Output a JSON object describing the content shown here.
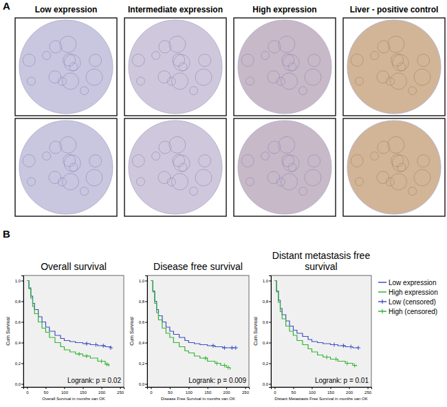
{
  "panel_a": {
    "label": "A",
    "columns": [
      "Low expression",
      "Intermediate expression",
      "High expression",
      "Liver - positive control"
    ]
  },
  "panel_b": {
    "label": "B"
  },
  "chart_data": [
    {
      "type": "line",
      "title": "Overall survival",
      "x_label": "Overall Survival in months van OK",
      "y_label": "Cum Survival",
      "annotation": "Logrank: p = 0.02",
      "xlim": [
        -10,
        260
      ],
      "xticks": [
        0,
        50,
        100,
        150,
        200,
        250
      ],
      "ylim": [
        -0.03,
        1.05
      ],
      "yticks": [
        {
          "value": 0,
          "label": "0,0"
        },
        {
          "value": 0.2,
          "label": "0,2"
        },
        {
          "value": 0.4,
          "label": "0,4"
        },
        {
          "value": 0.6,
          "label": "0,6"
        },
        {
          "value": 0.8,
          "label": "0,8"
        },
        {
          "value": 1,
          "label": "1,0"
        }
      ],
      "series": [
        {
          "color": "#3d4fc4",
          "line_style": "step",
          "x": [
            0,
            5,
            10,
            15,
            20,
            30,
            40,
            50,
            60,
            75,
            90,
            100,
            115,
            130,
            150,
            170,
            190,
            210,
            225
          ],
          "values": [
            1,
            0.93,
            0.85,
            0.78,
            0.72,
            0.65,
            0.6,
            0.55,
            0.51,
            0.47,
            0.44,
            0.42,
            0.41,
            0.4,
            0.39,
            0.38,
            0.37,
            0.36,
            0.35
          ]
        },
        {
          "color": "#2fb52f",
          "line_style": "step",
          "x": [
            0,
            5,
            10,
            15,
            20,
            30,
            40,
            50,
            60,
            75,
            90,
            100,
            115,
            130,
            150,
            170,
            190,
            210,
            220
          ],
          "values": [
            1,
            0.92,
            0.83,
            0.75,
            0.68,
            0.6,
            0.54,
            0.5,
            0.45,
            0.4,
            0.36,
            0.33,
            0.31,
            0.29,
            0.27,
            0.25,
            0.22,
            0.19,
            0.17
          ]
        },
        {
          "type": "scatter",
          "marker": "plus",
          "color": "#3d4fc4",
          "x": [
            160,
            185,
            205,
            225
          ],
          "values": [
            0.39,
            0.38,
            0.37,
            0.35
          ]
        },
        {
          "type": "scatter",
          "marker": "plus",
          "color": "#2fb52f",
          "x": [
            140,
            160,
            200,
            215
          ],
          "values": [
            0.29,
            0.27,
            0.22,
            0.19
          ]
        }
      ]
    },
    {
      "type": "line",
      "title": "Disease free survival",
      "x_label": "Disease Free Survival in months van OK",
      "y_label": "Cum Survival",
      "annotation": "Logrank: p = 0.009",
      "xlim": [
        -10,
        260
      ],
      "xticks": [
        0,
        50,
        100,
        150,
        200,
        250
      ],
      "ylim": [
        -0.03,
        1.05
      ],
      "yticks": [
        {
          "value": 0,
          "label": "0,0"
        },
        {
          "value": 0.2,
          "label": "0,2"
        },
        {
          "value": 0.4,
          "label": "0,4"
        },
        {
          "value": 0.6,
          "label": "0,6"
        },
        {
          "value": 0.8,
          "label": "0,8"
        },
        {
          "value": 1,
          "label": "1,0"
        }
      ],
      "series": [
        {
          "color": "#3d4fc4",
          "line_style": "step",
          "x": [
            0,
            5,
            10,
            15,
            20,
            30,
            40,
            50,
            60,
            75,
            90,
            100,
            115,
            130,
            150,
            170,
            190,
            210,
            225
          ],
          "values": [
            1,
            0.9,
            0.8,
            0.72,
            0.66,
            0.6,
            0.55,
            0.51,
            0.48,
            0.45,
            0.42,
            0.4,
            0.39,
            0.38,
            0.37,
            0.36,
            0.35,
            0.35,
            0.35
          ]
        },
        {
          "color": "#2fb52f",
          "line_style": "step",
          "x": [
            0,
            5,
            10,
            15,
            20,
            30,
            40,
            50,
            60,
            75,
            90,
            100,
            115,
            130,
            150,
            170,
            185,
            200,
            210
          ],
          "values": [
            1,
            0.89,
            0.78,
            0.69,
            0.62,
            0.54,
            0.49,
            0.45,
            0.4,
            0.36,
            0.32,
            0.3,
            0.27,
            0.25,
            0.22,
            0.2,
            0.18,
            0.16,
            0.14
          ]
        },
        {
          "type": "scatter",
          "marker": "plus",
          "color": "#3d4fc4",
          "x": [
            165,
            195,
            215,
            225
          ],
          "values": [
            0.37,
            0.35,
            0.35,
            0.35
          ]
        },
        {
          "type": "scatter",
          "marker": "plus",
          "color": "#2fb52f",
          "x": [
            145,
            175,
            195,
            205
          ],
          "values": [
            0.25,
            0.2,
            0.18,
            0.16
          ]
        }
      ]
    },
    {
      "type": "line",
      "title": "Distant metastasis free survival",
      "x_label": "Distant Metastasis Free Survival in months van OK",
      "y_label": "Cum Survival",
      "annotation": "Logrank: p = 0.01",
      "legend": "right",
      "xlim": [
        -10,
        260
      ],
      "xticks": [
        0,
        50,
        100,
        150,
        200,
        250
      ],
      "ylim": [
        -0.03,
        1.05
      ],
      "yticks": [
        {
          "value": 0,
          "label": "0,0"
        },
        {
          "value": 0.2,
          "label": "0,2"
        },
        {
          "value": 0.4,
          "label": "0,4"
        },
        {
          "value": 0.6,
          "label": "0,6"
        },
        {
          "value": 0.8,
          "label": "0,8"
        },
        {
          "value": 1,
          "label": "1,0"
        }
      ],
      "series": [
        {
          "name": "Low expression",
          "color": "#3d4fc4",
          "line_style": "step",
          "x": [
            0,
            5,
            10,
            15,
            20,
            30,
            40,
            50,
            60,
            75,
            90,
            100,
            115,
            130,
            150,
            170,
            190,
            210,
            225
          ],
          "values": [
            1,
            0.9,
            0.81,
            0.73,
            0.67,
            0.61,
            0.56,
            0.52,
            0.49,
            0.46,
            0.43,
            0.41,
            0.4,
            0.39,
            0.38,
            0.37,
            0.36,
            0.35,
            0.35
          ]
        },
        {
          "name": "High expression",
          "color": "#2fb52f",
          "line_style": "step",
          "x": [
            0,
            5,
            10,
            15,
            20,
            30,
            40,
            50,
            60,
            75,
            90,
            100,
            115,
            130,
            150,
            170,
            190,
            210,
            220
          ],
          "values": [
            1,
            0.89,
            0.79,
            0.7,
            0.63,
            0.56,
            0.51,
            0.47,
            0.42,
            0.38,
            0.34,
            0.31,
            0.28,
            0.26,
            0.24,
            0.22,
            0.2,
            0.18,
            0.17
          ]
        },
        {
          "name": "Low (censored)",
          "type": "scatter",
          "marker": "plus",
          "color": "#3d4fc4",
          "x": [
            160,
            185,
            205,
            225
          ],
          "values": [
            0.38,
            0.37,
            0.36,
            0.35
          ]
        },
        {
          "name": "High (censored)",
          "type": "scatter",
          "marker": "plus",
          "color": "#2fb52f",
          "x": [
            140,
            165,
            195,
            215
          ],
          "values": [
            0.26,
            0.24,
            0.2,
            0.18
          ]
        }
      ]
    }
  ]
}
